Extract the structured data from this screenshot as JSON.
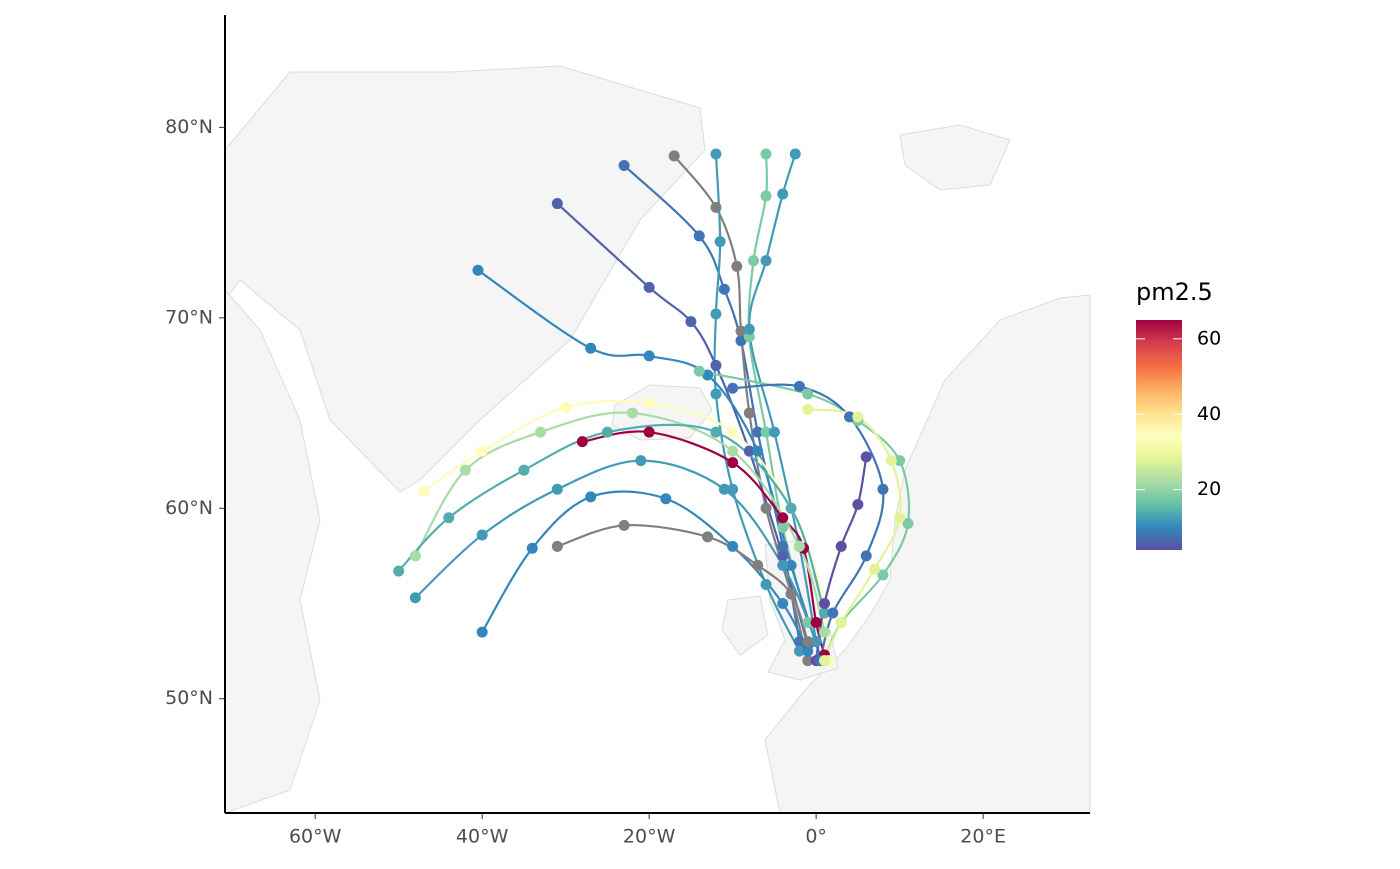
{
  "chart_data": {
    "type": "trajectory-map",
    "xlim": [
      -70.8,
      32.8
    ],
    "ylim": [
      44.0,
      85.9
    ],
    "xticks": [
      {
        "value": -60,
        "label": "60°W"
      },
      {
        "value": -40,
        "label": "40°W"
      },
      {
        "value": -20,
        "label": "20°W"
      },
      {
        "value": 0,
        "label": "0°"
      },
      {
        "value": 20,
        "label": "20°E"
      }
    ],
    "yticks": [
      {
        "value": 50,
        "label": "50°N"
      },
      {
        "value": 60,
        "label": "60°N"
      },
      {
        "value": 70,
        "label": "70°N"
      },
      {
        "value": 80,
        "label": "80°N"
      }
    ],
    "legend_title": "pm2.5",
    "colorlim": [
      4,
      65
    ],
    "colorticks": [
      20,
      40,
      60
    ],
    "colorscale": [
      "#5e4fa2",
      "#3288bd",
      "#66c2a5",
      "#abdda4",
      "#e6f598",
      "#ffffbf",
      "#fee08b",
      "#fdae61",
      "#f46d43",
      "#d53e4f",
      "#9e0142"
    ],
    "na_color": "#7f7f7f",
    "series": [
      {
        "pm25": 8,
        "lon": [
          -23,
          -14,
          -11,
          -9,
          -7,
          -4,
          -2
        ],
        "lat": [
          78,
          74.3,
          71.5,
          68.8,
          64,
          58,
          53
        ]
      },
      {
        "pm25": null,
        "lon": [
          -17,
          -12,
          -9.5,
          -9,
          -8,
          -6,
          -3,
          -1
        ],
        "lat": [
          78.5,
          75.8,
          72.7,
          69.3,
          65,
          60,
          55.5,
          52
        ]
      },
      {
        "pm25": 12,
        "lon": [
          -12,
          -11.5,
          -12,
          -12,
          -10,
          -6,
          -2
        ],
        "lat": [
          78.6,
          74,
          70.2,
          66,
          61,
          56,
          52.5
        ]
      },
      {
        "pm25": 18,
        "lon": [
          -6,
          -6,
          -7.5,
          -8,
          -6,
          -4,
          -1
        ],
        "lat": [
          78.6,
          76.4,
          73,
          69,
          64,
          59,
          54
        ]
      },
      {
        "pm25": 12,
        "lon": [
          -2.5,
          -4,
          -6,
          -8,
          -5,
          -2,
          0
        ],
        "lat": [
          78.6,
          76.5,
          73,
          69.4,
          64,
          58,
          53
        ]
      },
      {
        "pm25": 6,
        "lon": [
          -31,
          -20,
          -15,
          -12,
          -8,
          -4,
          -1
        ],
        "lat": [
          76,
          71.6,
          69.8,
          67.5,
          63,
          57.5,
          52.8
        ]
      },
      {
        "pm25": 10,
        "lon": [
          -40.5,
          -27,
          -20,
          -13,
          -7,
          -3,
          0.5
        ],
        "lat": [
          72.5,
          68.4,
          68,
          67,
          63,
          57,
          52.2
        ]
      },
      {
        "pm25": 65,
        "lon": [
          -28,
          -20,
          -10,
          -4,
          -1.5,
          0,
          1
        ],
        "lat": [
          63.5,
          64,
          62.4,
          59.5,
          57.9,
          54,
          52.3
        ]
      },
      {
        "pm25": 35,
        "lon": [
          -47,
          -40,
          -30,
          -20,
          -10,
          -3,
          1,
          1.5
        ],
        "lat": [
          60.9,
          63,
          65.3,
          65.5,
          64,
          60,
          55,
          52
        ]
      },
      {
        "pm25": 22,
        "lon": [
          -48,
          -42,
          -33,
          -22,
          -10,
          -2,
          1
        ],
        "lat": [
          57.5,
          62,
          64,
          65,
          63,
          58,
          53.5
        ]
      },
      {
        "pm25": 14,
        "lon": [
          -50,
          -44,
          -35,
          -25,
          -12,
          -3,
          1
        ],
        "lat": [
          56.7,
          59.5,
          62,
          64,
          64,
          60,
          54.5
        ]
      },
      {
        "pm25": 12,
        "lon": [
          -48,
          -40,
          -31,
          -21,
          -11,
          -4,
          0
        ],
        "lat": [
          55.3,
          58.6,
          61,
          62.5,
          61,
          57,
          53
        ]
      },
      {
        "pm25": 10,
        "lon": [
          -40,
          -34,
          -27,
          -18,
          -10,
          -4,
          -1
        ],
        "lat": [
          53.5,
          57.9,
          60.6,
          60.5,
          58,
          55,
          52.5
        ]
      },
      {
        "pm25": null,
        "lon": [
          -31,
          -23,
          -13,
          -7,
          -3,
          -1
        ],
        "lat": [
          58,
          59.1,
          58.5,
          57,
          55.5,
          53
        ]
      },
      {
        "pm25": 4,
        "lon": [
          6,
          5,
          3,
          1,
          0
        ],
        "lat": [
          62.7,
          60.2,
          58,
          55,
          52
        ]
      },
      {
        "pm25": 18,
        "lon": [
          -14,
          -1,
          5,
          10,
          11,
          8,
          3,
          1
        ],
        "lat": [
          67.2,
          66,
          64.6,
          62.5,
          59.2,
          56.5,
          54,
          52
        ]
      },
      {
        "pm25": 8,
        "lon": [
          -10,
          -2,
          4,
          8,
          6,
          2,
          0.5
        ],
        "lat": [
          66.3,
          66.4,
          64.8,
          61,
          57.5,
          54.5,
          52
        ]
      },
      {
        "pm25": 28,
        "lon": [
          -1,
          5,
          9,
          10,
          7,
          3,
          1
        ],
        "lat": [
          65.2,
          64.8,
          62.5,
          59.5,
          56.8,
          54,
          52
        ]
      }
    ]
  }
}
